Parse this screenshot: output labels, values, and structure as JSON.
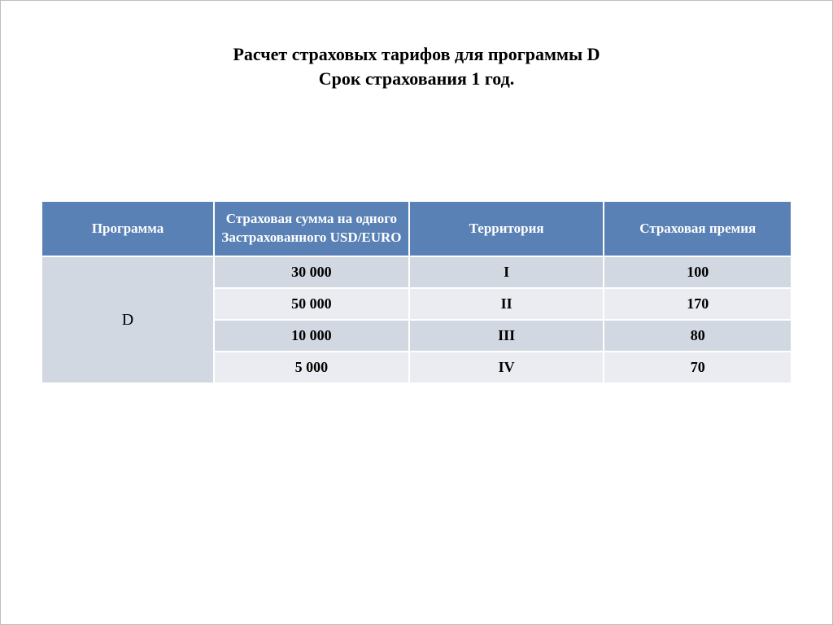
{
  "title": {
    "line1": "Расчет страховых тарифов для программы D",
    "line2": "Срок страхования 1 год."
  },
  "table": {
    "columns": [
      "Программа",
      "Страховая сумма на одного Застрахованного USD/EURO",
      "Территория",
      "Страховая премия"
    ],
    "program": "D",
    "rows": [
      {
        "sum": "30 000",
        "territory": "I",
        "premium": "100"
      },
      {
        "sum": "50 000",
        "territory": "II",
        "premium": "170"
      },
      {
        "sum": "10 000",
        "territory": "III",
        "premium": "80"
      },
      {
        "sum": "5 000",
        "territory": "IV",
        "premium": "70"
      }
    ],
    "colors": {
      "header_bg": "#5981b6",
      "header_text": "#ffffff",
      "row_odd_bg": "#d2d8e1",
      "row_even_bg": "#eaecf1",
      "border": "#ffffff",
      "text": "#000000"
    }
  }
}
